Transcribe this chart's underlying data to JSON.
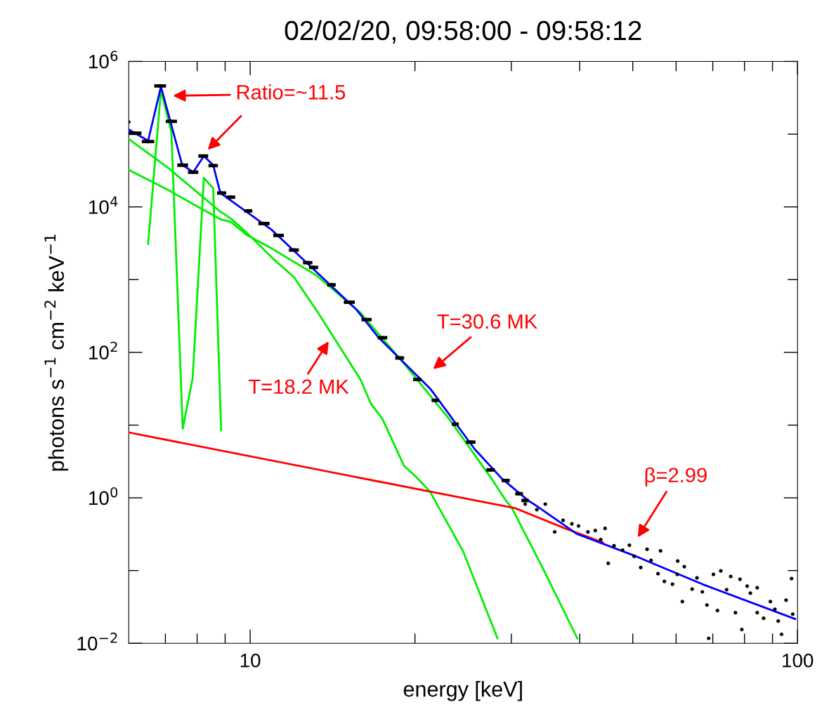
{
  "chart_data": {
    "type": "line",
    "title": "02/02/20, 09:58:00 - 09:58:12",
    "xlabel": "energy [keV]",
    "ylabel": "photons s$^{−1}$ cm$^{−2}$ keV$^{−1}$",
    "log": "xy",
    "grid": false,
    "legend": false,
    "line_style": "solid",
    "xlim": [
      6,
      100
    ],
    "ylim": [
      0.01,
      1000000
    ],
    "xticks": [
      {
        "value": 7,
        "label": null
      },
      {
        "value": 8,
        "label": null
      },
      {
        "value": 9,
        "label": null
      },
      10,
      {
        "value": 20,
        "label": null
      },
      {
        "value": 30,
        "label": null
      },
      {
        "value": 40,
        "label": null
      },
      {
        "value": 50,
        "label": null
      },
      {
        "value": 60,
        "label": null
      },
      {
        "value": 70,
        "label": null
      },
      {
        "value": 80,
        "label": null
      },
      {
        "value": 90,
        "label": null
      },
      100
    ],
    "yticks": [
      {
        "value": 0.01,
        "label": "10$^{−2}$"
      },
      {
        "value": 0.1,
        "label": null
      },
      {
        "value": 1,
        "label": "10$^{0}$"
      },
      {
        "value": 10,
        "label": null
      },
      {
        "value": 100,
        "label": "10$^{2}$"
      },
      {
        "value": 1000,
        "label": null
      },
      {
        "value": 10000,
        "label": "10$^{4}$"
      },
      {
        "value": 100000,
        "label": null
      },
      {
        "value": 1000000,
        "label": "10$^{6}$"
      }
    ],
    "annotations": [
      "Ratio=~11.5",
      "T=30.6 MK",
      "T=18.2 MK",
      "β=2.99"
    ],
    "series": [
      {
        "color": "#00ee00",
        "x": [
          6.51,
          6.87,
          7.18,
          7.53,
          7.85,
          8.23,
          8.56,
          8.85
        ],
        "values": [
          3100,
          400000,
          106000,
          8.9,
          44,
          25000,
          18000,
          8.5
        ]
      },
      {
        "color": "#00ee00",
        "x": [
          6.01,
          7.06,
          8.11,
          8.82,
          9.22,
          9.86,
          10.96,
          12.02,
          13.2,
          14.5,
          15.9,
          16.6,
          17.45,
          19.1,
          20.1,
          21.3,
          24.5,
          28.3
        ],
        "values": [
          85000,
          35000,
          14600,
          8600,
          6900,
          4400,
          2000,
          1080,
          384,
          127,
          42.4,
          20,
          12.1,
          2.75,
          1.94,
          1.22,
          0.183,
          0.0117
        ]
      },
      {
        "color": "#00ee00",
        "x": [
          6.01,
          7.06,
          8.11,
          8.85,
          9.22,
          9.86,
          10.96,
          13.2,
          15.9,
          19.1,
          23.1,
          27.7,
          29.3,
          30.0,
          34.4,
          39.6
        ],
        "values": [
          32000,
          17300,
          9600,
          6700,
          6200,
          4100,
          2670,
          1150,
          351,
          70,
          12.1,
          1.77,
          0.92,
          0.75,
          0.101,
          0.0117
        ]
      },
      {
        "color": "#ff0000",
        "x": [
          6.01,
          21.3,
          30.5,
          37.6,
          44.1
        ],
        "values": [
          7.9,
          1.22,
          0.72,
          0.38,
          0.244
        ]
      },
      {
        "color": "#0000ff",
        "x": [
          6.01,
          6.51,
          6.87,
          7.51,
          7.87,
          8.23,
          8.56,
          8.82,
          10.96,
          15.65,
          17.12,
          21.38,
          25.7,
          28.8,
          32.2,
          33.4,
          39.5,
          50.7,
          67.0,
          99
        ],
        "values": [
          115000,
          81000,
          450000,
          38000,
          30000,
          50000,
          37500,
          15500,
          4800,
          384,
          163,
          31,
          4.7,
          1.85,
          0.92,
          0.77,
          0.32,
          0.157,
          0.065,
          0.0216
        ]
      },
      {
        "type": "scatter",
        "color": "#000000",
        "marker": "circle",
        "x": [
          6.0,
          6.16,
          6.51,
          6.85,
          7.18,
          7.53,
          7.87,
          8.21,
          8.56,
          8.87,
          9.22,
          9.92,
          10.6,
          11.27,
          12.02,
          12.74,
          13.06,
          14.08,
          15.18,
          16.32,
          17.45,
          18.76,
          20.2,
          21.8,
          23.7,
          25.3,
          27.5,
          29.3,
          31.0,
          31.8,
          31.8,
          33.4,
          34.6,
          36.0,
          37.3,
          38.7,
          39.8,
          41.4,
          42.7,
          44.5,
          43.7,
          45.1,
          46.2,
          47.9,
          49.3,
          50.3,
          51.7,
          53.1,
          54.0,
          56.2,
          55.6,
          57.1,
          59.1,
          60.3,
          60.4,
          62.1,
          61.6,
          64.2,
          65.5,
          67.0,
          68.3,
          68.8,
          70.2,
          72.4,
          71.4,
          74.2,
          75.5,
          77.0,
          78.5,
          79.1,
          80.9,
          82.0,
          84.4,
          84.4,
          86.7,
          89.2,
          90.9,
          92.2,
          93.5,
          95.3,
          97.5,
          98.0
        ],
        "values": [
          147000,
          103000,
          79000,
          460000,
          150000,
          37500,
          30000,
          50000,
          37000,
          15500,
          13600,
          8800,
          5900,
          4050,
          2550,
          1710,
          1470,
          848,
          489,
          282,
          159,
          83.8,
          42.4,
          21.9,
          10.3,
          5.83,
          2.42,
          1.73,
          1.14,
          0.92,
          0.82,
          0.69,
          0.82,
          0.34,
          0.49,
          0.44,
          0.41,
          0.34,
          0.355,
          0.38,
          0.267,
          0.126,
          0.219,
          0.191,
          0.223,
          0.157,
          0.11,
          0.196,
          0.138,
          0.187,
          0.0906,
          0.071,
          0.065,
          0.0885,
          0.135,
          0.113,
          0.0375,
          0.0557,
          0.0793,
          0.051,
          0.0336,
          0.0117,
          0.0885,
          0.099,
          0.0282,
          0.0546,
          0.0828,
          0.0264,
          0.0759,
          0.0155,
          0.061,
          0.0489,
          0.0582,
          0.0264,
          0.0221,
          0.0375,
          0.0294,
          0.0202,
          0.0133,
          0.0392,
          0.0776,
          0.0252
        ],
        "xerrors": [
          null,
          0.17,
          0.17,
          0.17,
          0.17,
          0.17,
          0.17,
          0.17,
          0.17,
          0.17,
          0.17,
          0.17,
          0.25,
          0.25,
          0.25,
          0.25,
          0.25,
          0.25,
          0.35,
          0.35,
          0.35,
          0.35,
          0.35,
          0.35,
          0.35,
          0.5,
          0.5,
          0.5,
          0.5,
          0.5,
          null,
          null,
          null,
          null,
          null,
          null,
          null,
          null,
          null,
          null,
          null,
          null,
          null,
          null,
          null,
          null,
          null,
          null,
          null,
          null,
          null,
          null,
          null,
          null,
          null,
          null,
          null,
          null,
          null,
          null,
          null,
          null,
          null,
          null,
          null,
          null,
          null,
          null,
          null,
          null,
          null,
          null,
          null,
          null,
          null,
          null,
          null,
          null,
          null,
          null,
          null,
          null
        ]
      }
    ]
  }
}
